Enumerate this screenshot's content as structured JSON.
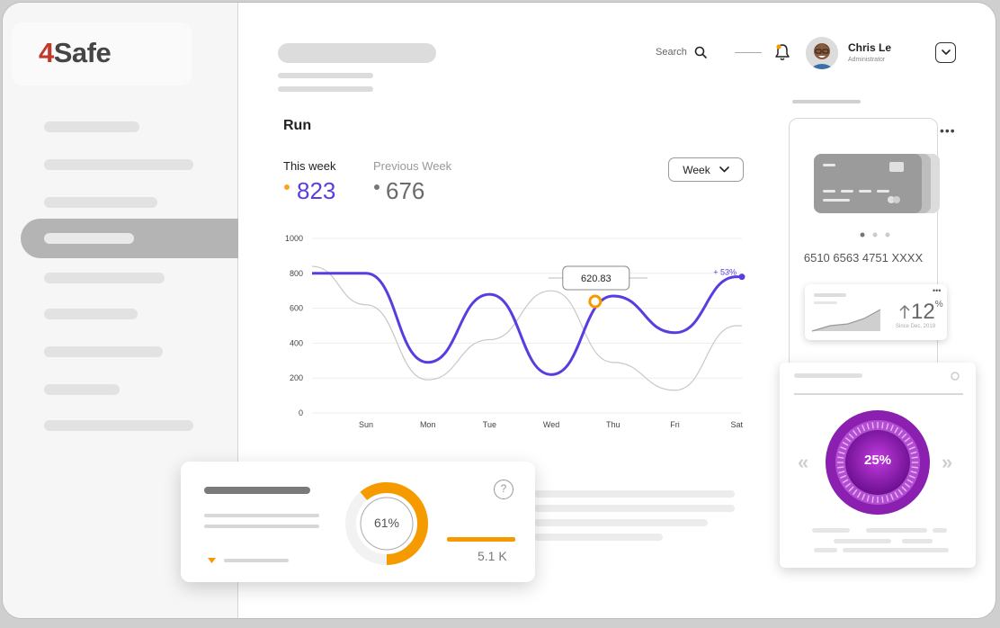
{
  "app": {
    "logo_prefix": "4",
    "logo_rest": "Safe"
  },
  "header": {
    "search_label": "Search",
    "user": {
      "name": "Chris Le",
      "role": "Administrator"
    },
    "icons": [
      "search-icon",
      "bell-icon",
      "chevron-down-icon"
    ]
  },
  "run": {
    "title": "Run",
    "this_week_label": "This week",
    "this_week_value": "823",
    "previous_week_label": "Previous Week",
    "previous_week_value": "676",
    "period_select": "Week"
  },
  "chart_data": {
    "type": "line",
    "x": [
      "Sun",
      "Mon",
      "Tue",
      "Wed",
      "Thu",
      "Fri",
      "Sat"
    ],
    "yticks": [
      "0",
      "200",
      "400",
      "600",
      "800",
      "1000"
    ],
    "ylim": [
      0,
      1000
    ],
    "series": [
      {
        "values": [
          800,
          290,
          680,
          220,
          670,
          460,
          780
        ],
        "color": "#5a3de0"
      },
      {
        "values": [
          620,
          190,
          420,
          700,
          290,
          130,
          500
        ],
        "color": "#c8c8c8"
      }
    ],
    "tooltip": "620.83",
    "annotation": "+ 53%"
  },
  "card": {
    "number": "6510 6563 4751 XXXX",
    "growth_value": "12",
    "growth_unit": "%",
    "growth_since": "Since Dec, 2019"
  },
  "gauge": {
    "value_label": "25%"
  },
  "stat": {
    "donut_label": "61%",
    "value": "5.1 K",
    "help": "?"
  },
  "colors": {
    "accent": "#5a3de0",
    "orange": "#f59b00",
    "purple": "#8a1fb0",
    "logo_red": "#c0392b"
  }
}
